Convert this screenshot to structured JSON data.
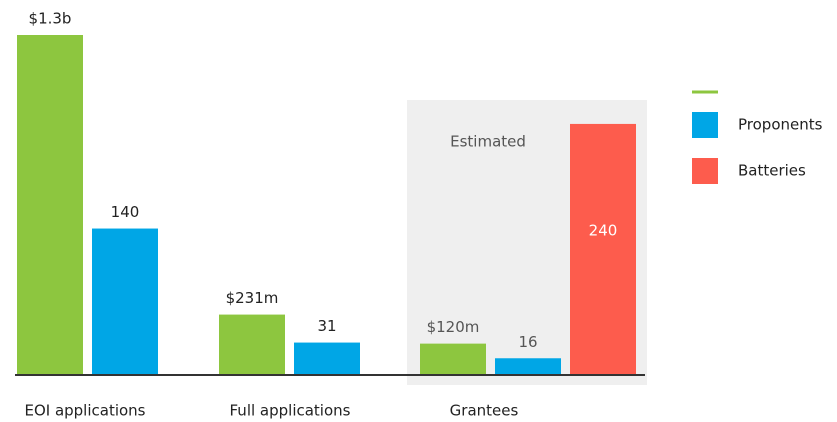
{
  "chart_data": {
    "type": "bar",
    "categories": [
      "EOI applications",
      "Full applications",
      "Grantees"
    ],
    "annotation": "Estimated",
    "series": [
      {
        "color": "#8dc63f",
        "axis": "y2",
        "values": [
          1300,
          231,
          120
        ],
        "value_labels": [
          "$1.3b",
          "$231m",
          "$120m"
        ]
      },
      {
        "name": "Proponents",
        "color": "#00a6e6",
        "values": [
          140,
          31,
          16
        ]
      },
      {
        "name": "Batteries",
        "color": "#fd5c4d",
        "values": [
          null,
          null,
          240
        ],
        "label_position": "inside"
      }
    ],
    "ylim": [
      0,
      325
    ],
    "y2lim": [
      0,
      1300
    ],
    "legend": "upper right"
  }
}
